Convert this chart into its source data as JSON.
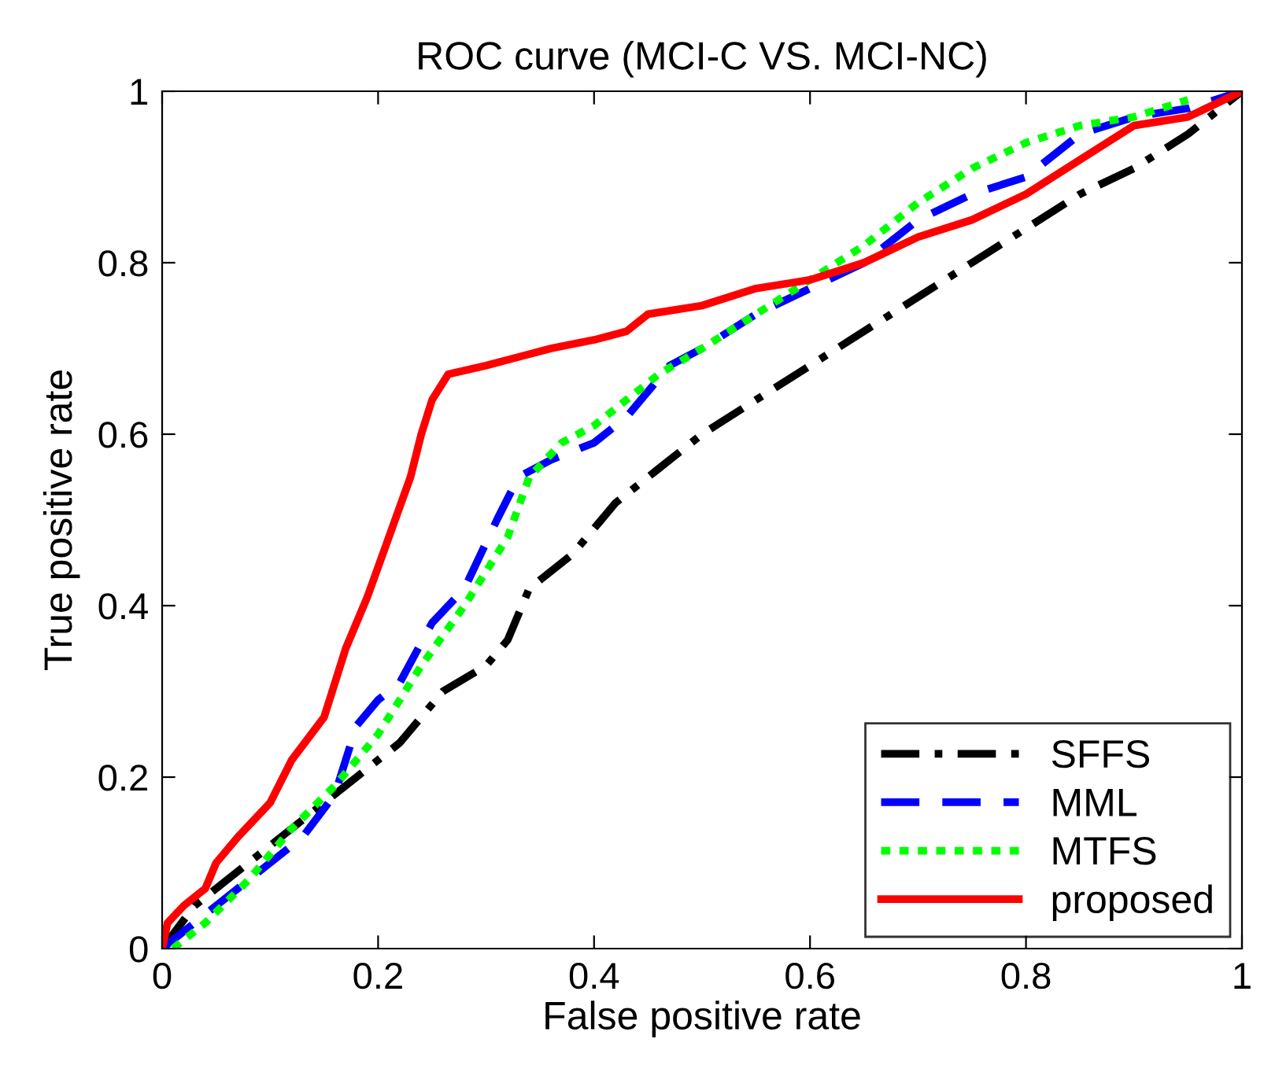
{
  "chart_data": {
    "type": "line",
    "title": "ROC curve (MCI-C VS. MCI-NC)",
    "xlabel": "False positive rate",
    "ylabel": "True positive rate",
    "xlim": [
      0,
      1
    ],
    "ylim": [
      0,
      1
    ],
    "xticks": [
      0,
      0.2,
      0.4,
      0.6,
      0.8,
      1
    ],
    "yticks": [
      0,
      0.2,
      0.4,
      0.6,
      0.8,
      1
    ],
    "grid": false,
    "legend": "bottom right",
    "marker": "none",
    "series": [
      {
        "name": "SFFS",
        "color": "#000000",
        "line_style": "dashdot",
        "x": [
          0,
          0.03,
          0.06,
          0.1,
          0.15,
          0.18,
          0.22,
          0.26,
          0.3,
          0.32,
          0.34,
          0.38,
          0.42,
          0.46,
          0.5,
          0.55,
          0.6,
          0.65,
          0.7,
          0.75,
          0.8,
          0.85,
          0.9,
          0.95,
          1
        ],
        "values": [
          0,
          0.05,
          0.08,
          0.12,
          0.17,
          0.2,
          0.24,
          0.3,
          0.33,
          0.36,
          0.42,
          0.46,
          0.52,
          0.56,
          0.6,
          0.64,
          0.68,
          0.72,
          0.76,
          0.8,
          0.84,
          0.88,
          0.91,
          0.95,
          1
        ]
      },
      {
        "name": "MML",
        "color": "#0000ff",
        "line_style": "dashed",
        "x": [
          0,
          0.02,
          0.05,
          0.1,
          0.13,
          0.16,
          0.18,
          0.2,
          0.22,
          0.25,
          0.28,
          0.31,
          0.33,
          0.36,
          0.4,
          0.43,
          0.47,
          0.5,
          0.55,
          0.6,
          0.65,
          0.7,
          0.75,
          0.8,
          0.85,
          0.9,
          0.95,
          1
        ],
        "values": [
          0,
          0.02,
          0.05,
          0.1,
          0.13,
          0.18,
          0.26,
          0.29,
          0.31,
          0.38,
          0.42,
          0.5,
          0.55,
          0.57,
          0.59,
          0.62,
          0.68,
          0.7,
          0.74,
          0.77,
          0.8,
          0.85,
          0.88,
          0.9,
          0.95,
          0.97,
          0.98,
          1
        ]
      },
      {
        "name": "MTFS",
        "color": "#00ff00",
        "line_style": "dotted",
        "x": [
          0.01,
          0.04,
          0.08,
          0.12,
          0.16,
          0.2,
          0.24,
          0.28,
          0.32,
          0.34,
          0.37,
          0.4,
          0.43,
          0.46,
          0.5,
          0.55,
          0.6,
          0.65,
          0.7,
          0.75,
          0.8,
          0.85,
          0.9,
          0.95
        ],
        "values": [
          0,
          0.03,
          0.08,
          0.14,
          0.19,
          0.25,
          0.33,
          0.4,
          0.48,
          0.55,
          0.59,
          0.61,
          0.64,
          0.67,
          0.7,
          0.74,
          0.78,
          0.82,
          0.87,
          0.91,
          0.94,
          0.96,
          0.97,
          0.99
        ]
      },
      {
        "name": "proposed",
        "color": "#ff0000",
        "line_style": "solid",
        "x": [
          0,
          0.005,
          0.02,
          0.04,
          0.05,
          0.07,
          0.1,
          0.12,
          0.15,
          0.17,
          0.19,
          0.21,
          0.23,
          0.24,
          0.25,
          0.265,
          0.3,
          0.33,
          0.36,
          0.4,
          0.43,
          0.45,
          0.5,
          0.55,
          0.6,
          0.65,
          0.7,
          0.75,
          0.8,
          0.85,
          0.9,
          0.95,
          1
        ],
        "values": [
          0,
          0.03,
          0.05,
          0.07,
          0.1,
          0.13,
          0.17,
          0.22,
          0.27,
          0.35,
          0.41,
          0.48,
          0.55,
          0.6,
          0.64,
          0.67,
          0.68,
          0.69,
          0.7,
          0.71,
          0.72,
          0.74,
          0.75,
          0.77,
          0.78,
          0.8,
          0.83,
          0.85,
          0.88,
          0.92,
          0.96,
          0.97,
          1
        ]
      }
    ]
  }
}
